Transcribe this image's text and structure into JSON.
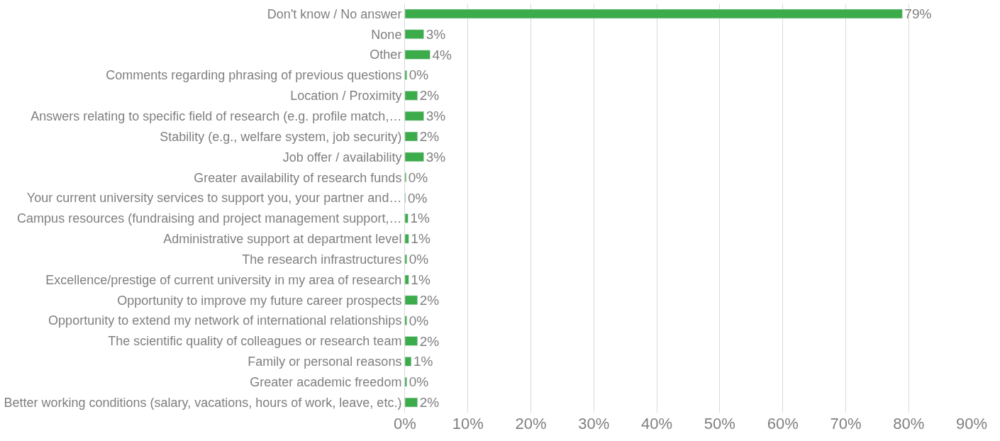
{
  "chart_data": {
    "type": "bar",
    "orientation": "horizontal",
    "categories": [
      "Don't know / No answer",
      "None",
      "Other",
      "Comments regarding phrasing of previous questions",
      "Location / Proximity",
      "Answers relating to specific field of research (e.g. profile match,…",
      "Stability (e.g., welfare system, job security)",
      "Job offer / availability",
      "Greater availability of research funds",
      "Your current university services to support you, your partner and…",
      "Campus resources (fundraising and project management support,…",
      "Administrative support at department level",
      "The research infrastructures",
      "Excellence/prestige of current university in my area of research",
      "Opportunity to improve my future career prospects",
      "Opportunity to extend my network of international relationships",
      "The scientific quality of colleagues or research team",
      "Family or personal reasons",
      "Greater academic freedom",
      "Better working conditions (salary, vacations, hours of work, leave, etc.)"
    ],
    "values": [
      79,
      3,
      4,
      0.3,
      2,
      3,
      2,
      3,
      0.2,
      0.1,
      0.5,
      0.6,
      0.3,
      0.6,
      2,
      0.3,
      2,
      1,
      0.3,
      2
    ],
    "value_labels": [
      "79%",
      "3%",
      "4%",
      "0%",
      "2%",
      "3%",
      "2%",
      "3%",
      "0%",
      "0%",
      "1%",
      "1%",
      "0%",
      "1%",
      "2%",
      "0%",
      "2%",
      "1%",
      "0%",
      "2%"
    ],
    "color": "#3cab4a",
    "xlim": [
      0,
      90
    ],
    "xticks": [
      {
        "value": 0,
        "label": "0%"
      },
      {
        "value": 10,
        "label": "10%"
      },
      {
        "value": 20,
        "label": "20%"
      },
      {
        "value": 30,
        "label": "30%"
      },
      {
        "value": 40,
        "label": "40%"
      },
      {
        "value": 50,
        "label": "50%"
      },
      {
        "value": 60,
        "label": "60%"
      },
      {
        "value": 70,
        "label": "70%"
      },
      {
        "value": 80,
        "label": "80%"
      },
      {
        "value": 90,
        "label": "90%"
      }
    ],
    "grid": "x",
    "legend": false
  }
}
